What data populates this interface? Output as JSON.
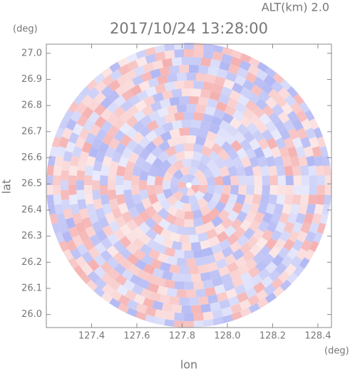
{
  "chart_data": {
    "type": "radar",
    "title": "2017/10/24 13:28:00",
    "subtitle": "ALT(km) 2.0",
    "x_label": "lon",
    "y_label": "lat",
    "x_unit": "(deg)",
    "y_unit": "(deg)",
    "xlim": [
      127.2,
      128.46
    ],
    "ylim": [
      25.95,
      27.035
    ],
    "xticks": [
      127.4,
      127.6,
      127.8,
      {
        "value": 128,
        "label": "128.0"
      },
      128.2,
      128.4
    ],
    "yticks": [
      {
        "value": 26,
        "label": "26.0"
      },
      26.1,
      26.2,
      26.3,
      26.4,
      26.5,
      26.6,
      26.7,
      26.8,
      26.9,
      {
        "value": 27,
        "label": "27.0"
      }
    ],
    "colors": [
      "#f4a6a6",
      "#a9aff2"
    ]
  }
}
